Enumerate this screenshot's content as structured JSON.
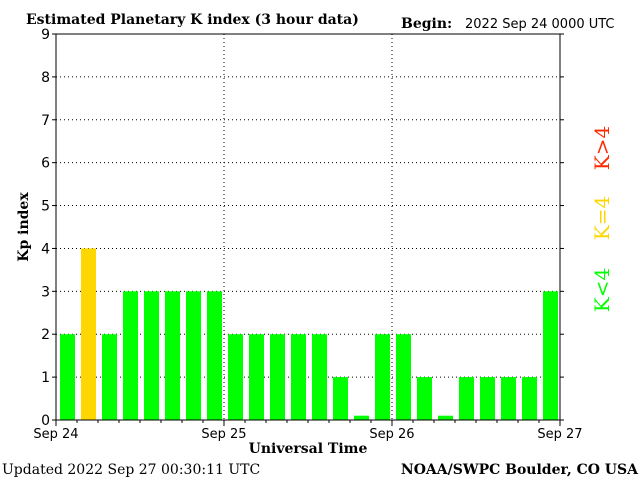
{
  "chart_data": {
    "type": "bar",
    "title": "Estimated Planetary K index (3 hour data)",
    "begin_label": "Begin:",
    "begin_value": "2022 Sep 24 0000 UTC",
    "ylabel": "Kp index",
    "xlabel": "Universal Time",
    "ylim": [
      0,
      9
    ],
    "yticks": [
      "0",
      "1",
      "2",
      "3",
      "4",
      "5",
      "6",
      "7",
      "8",
      "9"
    ],
    "x_day_labels": [
      "Sep 24",
      "Sep 25",
      "Sep 26",
      "Sep 27"
    ],
    "values": [
      2,
      4,
      2,
      3,
      3,
      3,
      3,
      3,
      2,
      2,
      2,
      2,
      2,
      1,
      0.1,
      2,
      2,
      1,
      0.1,
      1,
      1,
      1,
      1,
      3
    ],
    "grid": true,
    "legend": [
      {
        "label": "K<4",
        "color": "#00ff00"
      },
      {
        "label": "K=4",
        "color": "#ffd700"
      },
      {
        "label": "K>4",
        "color": "#ff2a00"
      }
    ],
    "colors": {
      "below4": "#00ff00",
      "equal4": "#ffd700",
      "above4": "#ff2a00"
    }
  },
  "footer": {
    "updated": "Updated 2022 Sep 27 00:30:11 UTC",
    "source": "NOAA/SWPC Boulder, CO USA"
  }
}
